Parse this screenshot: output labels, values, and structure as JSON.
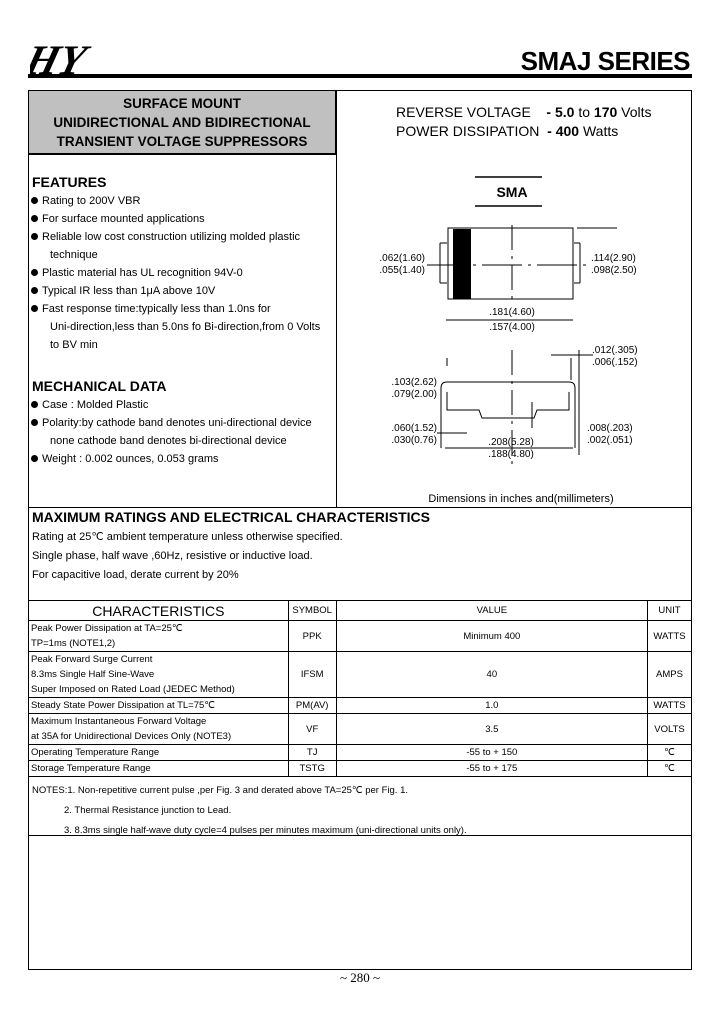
{
  "header": {
    "logo": "HY",
    "series": "SMAJ SERIES"
  },
  "title_box": {
    "lines": [
      "SURFACE MOUNT",
      "UNIDIRECTIONAL AND BIDIRECTIONAL",
      "TRANSIENT VOLTAGE  SUPPRESSORS"
    ]
  },
  "specs": {
    "reverse_voltage": {
      "label": "REVERSE VOLTAGE",
      "dash": "-",
      "min": "5.0",
      "to": "to",
      "max": "170",
      "unit": "Volts"
    },
    "power": {
      "label": "POWER DISSIPATION",
      "dash": "-",
      "value": "400",
      "unit": "Watts"
    }
  },
  "features": {
    "title": "FEATURES",
    "items": [
      [
        "Rating to 200V VBR"
      ],
      [
        "For surface mounted applications"
      ],
      [
        "Reliable low cost construction utilizing molded plastic",
        "technique"
      ],
      [
        "Plastic material has UL recognition 94V-0"
      ],
      [
        "Typical IR less than 1μA above 10V"
      ],
      [
        "Fast response time:typically less than 1.0ns for",
        "Uni-direction,less than 5.0ns fo Bi-direction,from 0 Volts",
        "to BV min"
      ]
    ]
  },
  "mechanical": {
    "title": "MECHANICAL  DATA",
    "items": [
      [
        "Case : Molded Plastic"
      ],
      [
        "Polarity:by cathode band denotes uni-directional device",
        "none cathode band denotes bi-directional device"
      ],
      [
        "Weight :  0.002 ounces, 0.053 grams"
      ]
    ]
  },
  "diagram": {
    "package": "SMA",
    "dims": {
      "w_max": ".062(1.60)",
      "w_min": ".055(1.40)",
      "h_max": ".114(2.90)",
      "h_min": ".098(2.50)",
      "l_max": ".181(4.60)",
      "l_min": ".157(4.00)",
      "t_max": ".012(.305)",
      "t_min": ".006(.152)",
      "ht_max": ".103(2.62)",
      "ht_min": ".079(2.00)",
      "lead_max": ".060(1.52)",
      "lead_min": ".030(0.76)",
      "st_max": ".008(.203)",
      "st_min": ".002(.051)",
      "ol_max": ".208(5.28)",
      "ol_min": ".188(4.80)"
    },
    "note": "Dimensions in inches and(millimeters)"
  },
  "ratings": {
    "title": "MAXIMUM RATINGS AND ELECTRICAL CHARACTERISTICS",
    "lines": [
      "Rating at 25℃ ambient temperature unless otherwise specified.",
      "Single phase, half wave ,60Hz, resistive or inductive load.",
      "For capacitive load, derate current by 20%"
    ]
  },
  "table": {
    "headers": [
      "CHARACTERISTICS",
      "SYMBOL",
      "VALUE",
      "UNIT"
    ],
    "rows": [
      {
        "desc": [
          "Peak  Power Dissipation at TA=25℃",
          "TP=1ms (NOTE1,2)"
        ],
        "symbol": "PPK",
        "value": "Minimum 400",
        "unit": "WATTS"
      },
      {
        "desc": [
          "Peak Forward Surge Current",
          "8.3ms Single Half Sine-Wave",
          "Super Imposed on Rated Load (JEDEC Method)"
        ],
        "symbol": "IFSM",
        "value": "40",
        "unit": "AMPS"
      },
      {
        "desc": [
          "Steady State Power Dissipation at TL=75℃"
        ],
        "symbol": "PM(AV)",
        "value": "1.0",
        "unit": "WATTS"
      },
      {
        "desc": [
          "Maximum Instantaneous Forward Voltage",
          "at 35A for Unidirectional Devices Only (NOTE3)"
        ],
        "symbol": "VF",
        "value": "3.5",
        "unit": "VOLTS"
      },
      {
        "desc": [
          "Operating Temperature Range"
        ],
        "symbol": "TJ",
        "value": "-55 to + 150",
        "unit": "℃"
      },
      {
        "desc": [
          "Storage Temperature Range"
        ],
        "symbol": "TSTG",
        "value": "-55 to + 175",
        "unit": "℃"
      }
    ]
  },
  "notes": [
    "NOTES:1. Non-repetitive current pulse ,per Fig. 3 and derated above  TA=25℃  per Fig. 1.",
    "2. Thermal Resistance junction to Lead.",
    "3. 8.3ms single half-wave duty cycle=4 pulses per minutes maximum (uni-directional units only)."
  ],
  "footer": {
    "page": "~ 280 ~"
  }
}
